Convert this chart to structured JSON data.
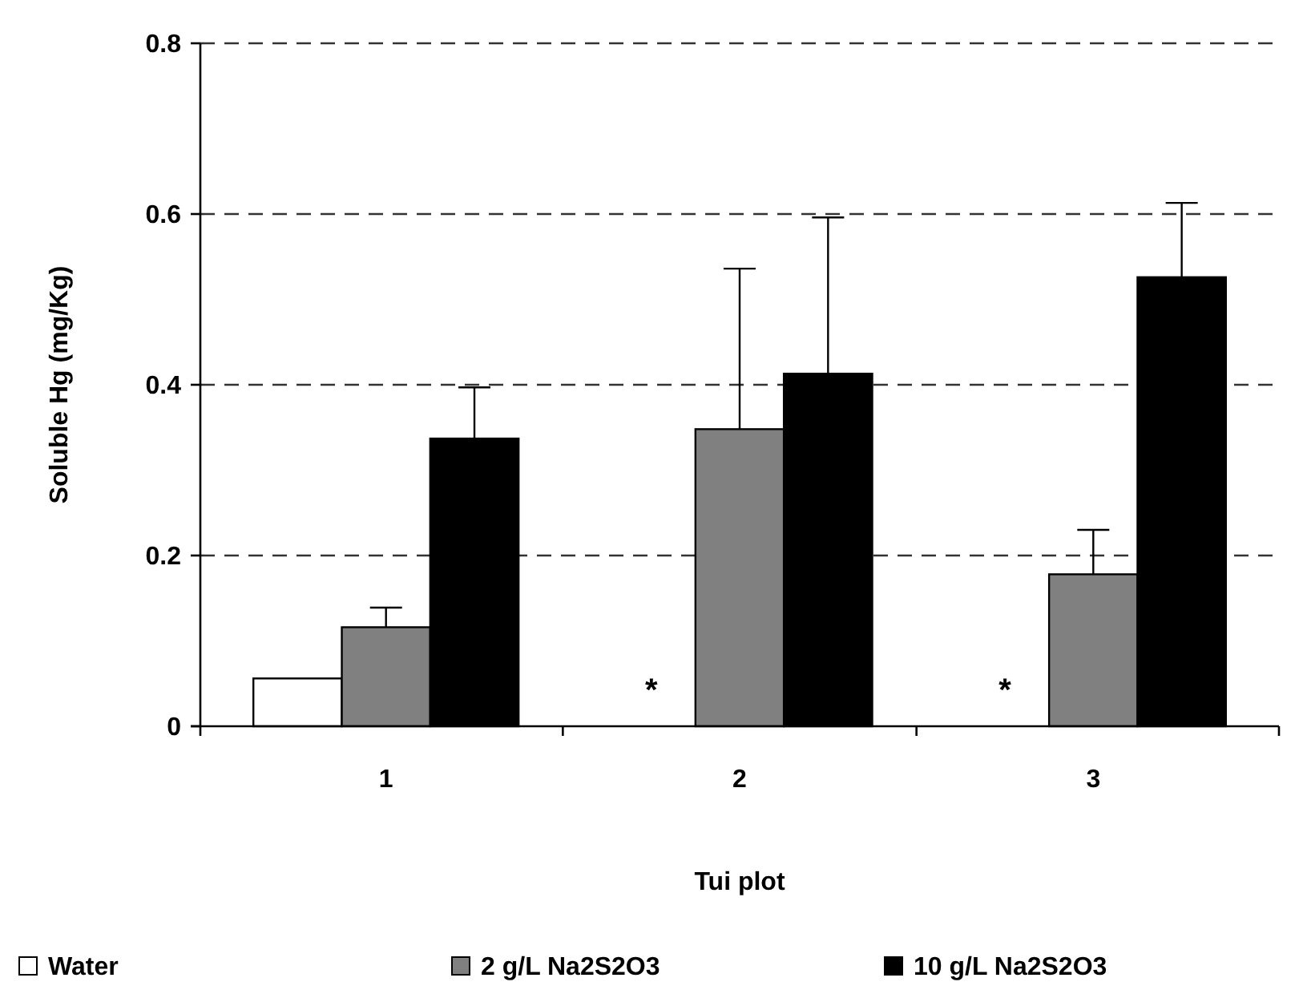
{
  "chart_data": {
    "type": "bar",
    "xlabel": "Tui plot",
    "ylabel": "Soluble Hg (mg/Kg)",
    "categories": [
      "1",
      "2",
      "3"
    ],
    "series": [
      {
        "name": "Water",
        "color": "#ffffff",
        "values": [
          0.056,
          null,
          null
        ]
      },
      {
        "name": "2 g/L Na2S2O3",
        "color": "#808080",
        "values": [
          0.116,
          0.348,
          0.178
        ],
        "errors": [
          0.023,
          0.188,
          0.052
        ]
      },
      {
        "name": "10 g/L Na2S2O3",
        "color": "#000000",
        "values": [
          0.337,
          0.413,
          0.526
        ],
        "errors": [
          0.06,
          0.183,
          0.087
        ]
      }
    ],
    "ylim": [
      0,
      0.8
    ],
    "yticks": [
      0,
      0.2,
      0.4,
      0.6,
      0.8
    ],
    "grid": "y",
    "legend": "bottom",
    "annotations": [
      "*",
      "*"
    ]
  }
}
